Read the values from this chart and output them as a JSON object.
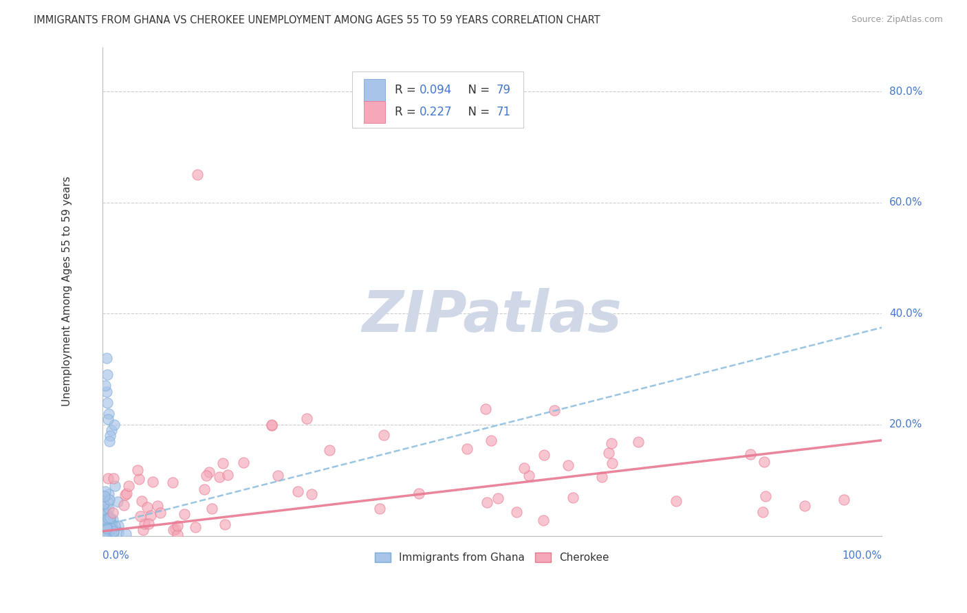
{
  "title": "IMMIGRANTS FROM GHANA VS CHEROKEE UNEMPLOYMENT AMONG AGES 55 TO 59 YEARS CORRELATION CHART",
  "source": "Source: ZipAtlas.com",
  "ylabel": "Unemployment Among Ages 55 to 59 years",
  "xlim": [
    0.0,
    1.0
  ],
  "ylim": [
    0.0,
    0.88
  ],
  "blue_color": "#a8c4e8",
  "pink_color": "#f4a8b8",
  "blue_edge_color": "#7aaad8",
  "pink_edge_color": "#e87890",
  "blue_line_color": "#88bbdd",
  "pink_line_color": "#e87890",
  "text_color_dark": "#333333",
  "text_color_blue": "#4477cc",
  "grid_color": "#cccccc",
  "watermark_color": "#d0d8e8",
  "blue_trend_start": 0.018,
  "blue_trend_end": 0.375,
  "pink_trend_start": 0.008,
  "pink_trend_end": 0.172,
  "legend_blue_R": "R = 0.094",
  "legend_blue_N": "N = 79",
  "legend_pink_R": "R = 0.227",
  "legend_pink_N": "N = 71",
  "bottom_legend_labels": [
    "Immigrants from Ghana",
    "Cherokee"
  ]
}
